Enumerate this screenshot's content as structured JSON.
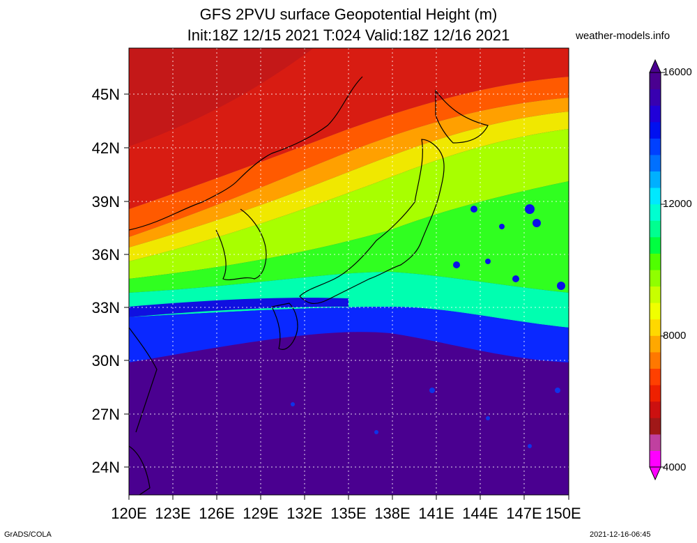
{
  "title_line1": "GFS 2PVU surface Geopotential Height (m)",
  "title_line2": "Init:18Z 12/15 2021 T:024 Valid:18Z 12/16 2021",
  "site": "weather-models.info",
  "lat_labels": [
    "45N",
    "42N",
    "39N",
    "36N",
    "33N",
    "30N",
    "27N",
    "24N"
  ],
  "lon_labels": [
    "120E",
    "123E",
    "126E",
    "129E",
    "132E",
    "135E",
    "138E",
    "141E",
    "144E",
    "147E",
    "150E"
  ],
  "colorbar": {
    "labels": [
      "16000",
      "12000",
      "8000",
      "4000"
    ],
    "colors": [
      "#ff00ff",
      "#c040a0",
      "#a01818",
      "#cc1010",
      "#ee2000",
      "#ff4000",
      "#ff7800",
      "#ffa800",
      "#ffd800",
      "#f0ff00",
      "#c8ff00",
      "#90ff00",
      "#50ff00",
      "#00ff40",
      "#00ff90",
      "#00ffd0",
      "#00e8ff",
      "#00b0ff",
      "#0070ff",
      "#0040ff",
      "#0010f0",
      "#2000d8",
      "#3800b0",
      "#4a0090"
    ]
  },
  "footer_left": "GrADS/COLA",
  "footer_right": "2021-12-16-06:45"
}
